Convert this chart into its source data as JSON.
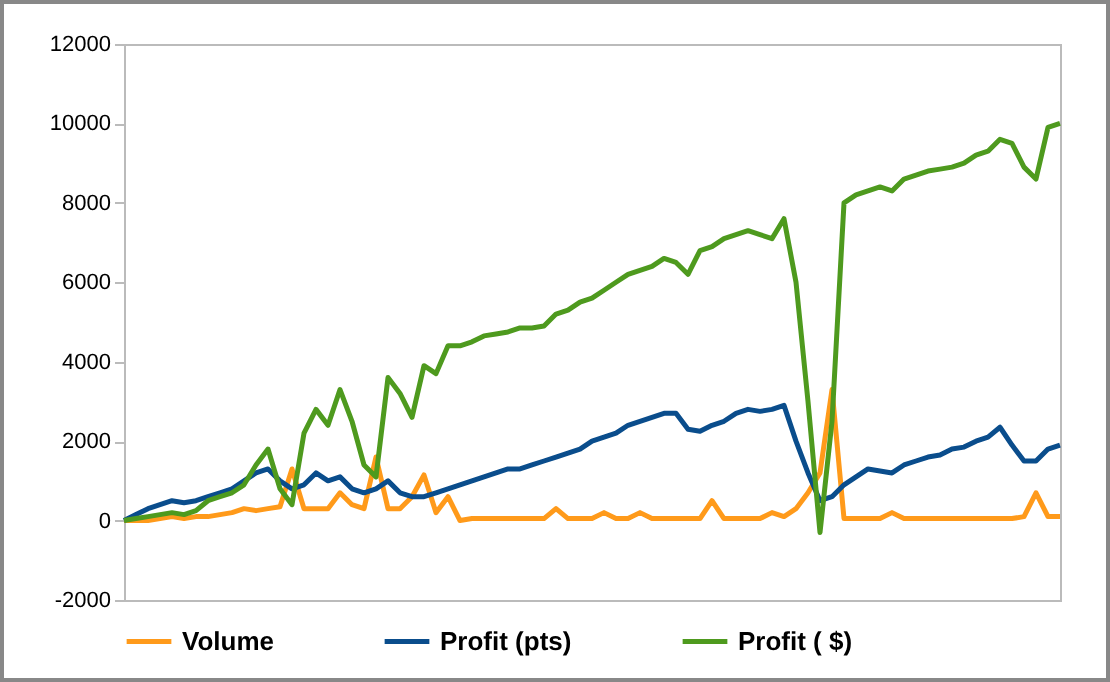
{
  "chart_data": {
    "type": "line",
    "categories": [
      null,
      null,
      null,
      null,
      null,
      null,
      null,
      null,
      null,
      null,
      null,
      null,
      null,
      null,
      null,
      null,
      null,
      null,
      null,
      null,
      null,
      null,
      null,
      null,
      null,
      null,
      null,
      null,
      null,
      null,
      null,
      null,
      null,
      null,
      null,
      null,
      null,
      null,
      null,
      null,
      null,
      null,
      null,
      null,
      null,
      null,
      null,
      null,
      null,
      null,
      null,
      null,
      null,
      null,
      null,
      null,
      null,
      null,
      null,
      null,
      null,
      null,
      null,
      null,
      null,
      null,
      null,
      null,
      null,
      null,
      null,
      null,
      null,
      null,
      null,
      null,
      null,
      null,
      null
    ],
    "series": [
      {
        "name": "Volume",
        "color": "#ff9a1a",
        "values": [
          0,
          0,
          0,
          50,
          100,
          50,
          100,
          100,
          150,
          200,
          300,
          250,
          300,
          350,
          1300,
          300,
          300,
          300,
          700,
          400,
          300,
          1600,
          300,
          300,
          600,
          1150,
          200,
          600,
          0,
          50,
          50,
          50,
          50,
          50,
          50,
          50,
          300,
          50,
          50,
          50,
          200,
          50,
          50,
          200,
          50,
          50,
          50,
          50,
          50,
          500,
          50,
          50,
          50,
          50,
          200,
          100,
          300,
          700,
          1200,
          3300,
          50,
          50,
          50,
          50,
          200,
          50,
          50,
          50,
          50,
          50,
          50,
          50,
          50,
          50,
          50,
          100,
          700,
          100,
          100
        ]
      },
      {
        "name": "Profit (pts)",
        "color": "#0a4d8c",
        "values": [
          0,
          150,
          300,
          400,
          500,
          450,
          500,
          600,
          700,
          800,
          1000,
          1200,
          1300,
          1000,
          800,
          900,
          1200,
          1000,
          1100,
          800,
          700,
          800,
          1000,
          700,
          600,
          600,
          700,
          800,
          900,
          1000,
          1100,
          1200,
          1300,
          1300,
          1400,
          1500,
          1600,
          1700,
          1800,
          2000,
          2100,
          2200,
          2400,
          2500,
          2600,
          2700,
          2700,
          2300,
          2250,
          2400,
          2500,
          2700,
          2800,
          2750,
          2800,
          2900,
          2000,
          1200,
          500,
          600,
          900,
          1100,
          1300,
          1250,
          1200,
          1400,
          1500,
          1600,
          1650,
          1800,
          1850,
          2000,
          2100,
          2350,
          1900,
          1500,
          1500,
          1800,
          1900
        ]
      },
      {
        "name": "Profit ( $)",
        "color": "#4e9a1e",
        "values": [
          0,
          50,
          100,
          150,
          200,
          150,
          250,
          500,
          600,
          700,
          900,
          1400,
          1800,
          800,
          400,
          2200,
          2800,
          2400,
          3300,
          2500,
          1400,
          1100,
          3600,
          3200,
          2600,
          3900,
          3700,
          4400,
          4400,
          4500,
          4650,
          4700,
          4750,
          4850,
          4850,
          4900,
          5200,
          5300,
          5500,
          5600,
          5800,
          6000,
          6200,
          6300,
          6400,
          6600,
          6500,
          6200,
          6800,
          6900,
          7100,
          7200,
          7300,
          7200,
          7100,
          7600,
          6000,
          3000,
          -300,
          2500,
          8000,
          8200,
          8300,
          8400,
          8300,
          8600,
          8700,
          8800,
          8850,
          8900,
          9000,
          9200,
          9300,
          9600,
          9500,
          8900,
          8600,
          9900,
          10000
        ]
      }
    ],
    "ylim": [
      -2000,
      12000
    ],
    "yticks": [
      -2000,
      0,
      2000,
      4000,
      6000,
      8000,
      10000,
      12000
    ],
    "legend": "bottom",
    "grid": false,
    "marker": "none",
    "line_style": "solid"
  }
}
